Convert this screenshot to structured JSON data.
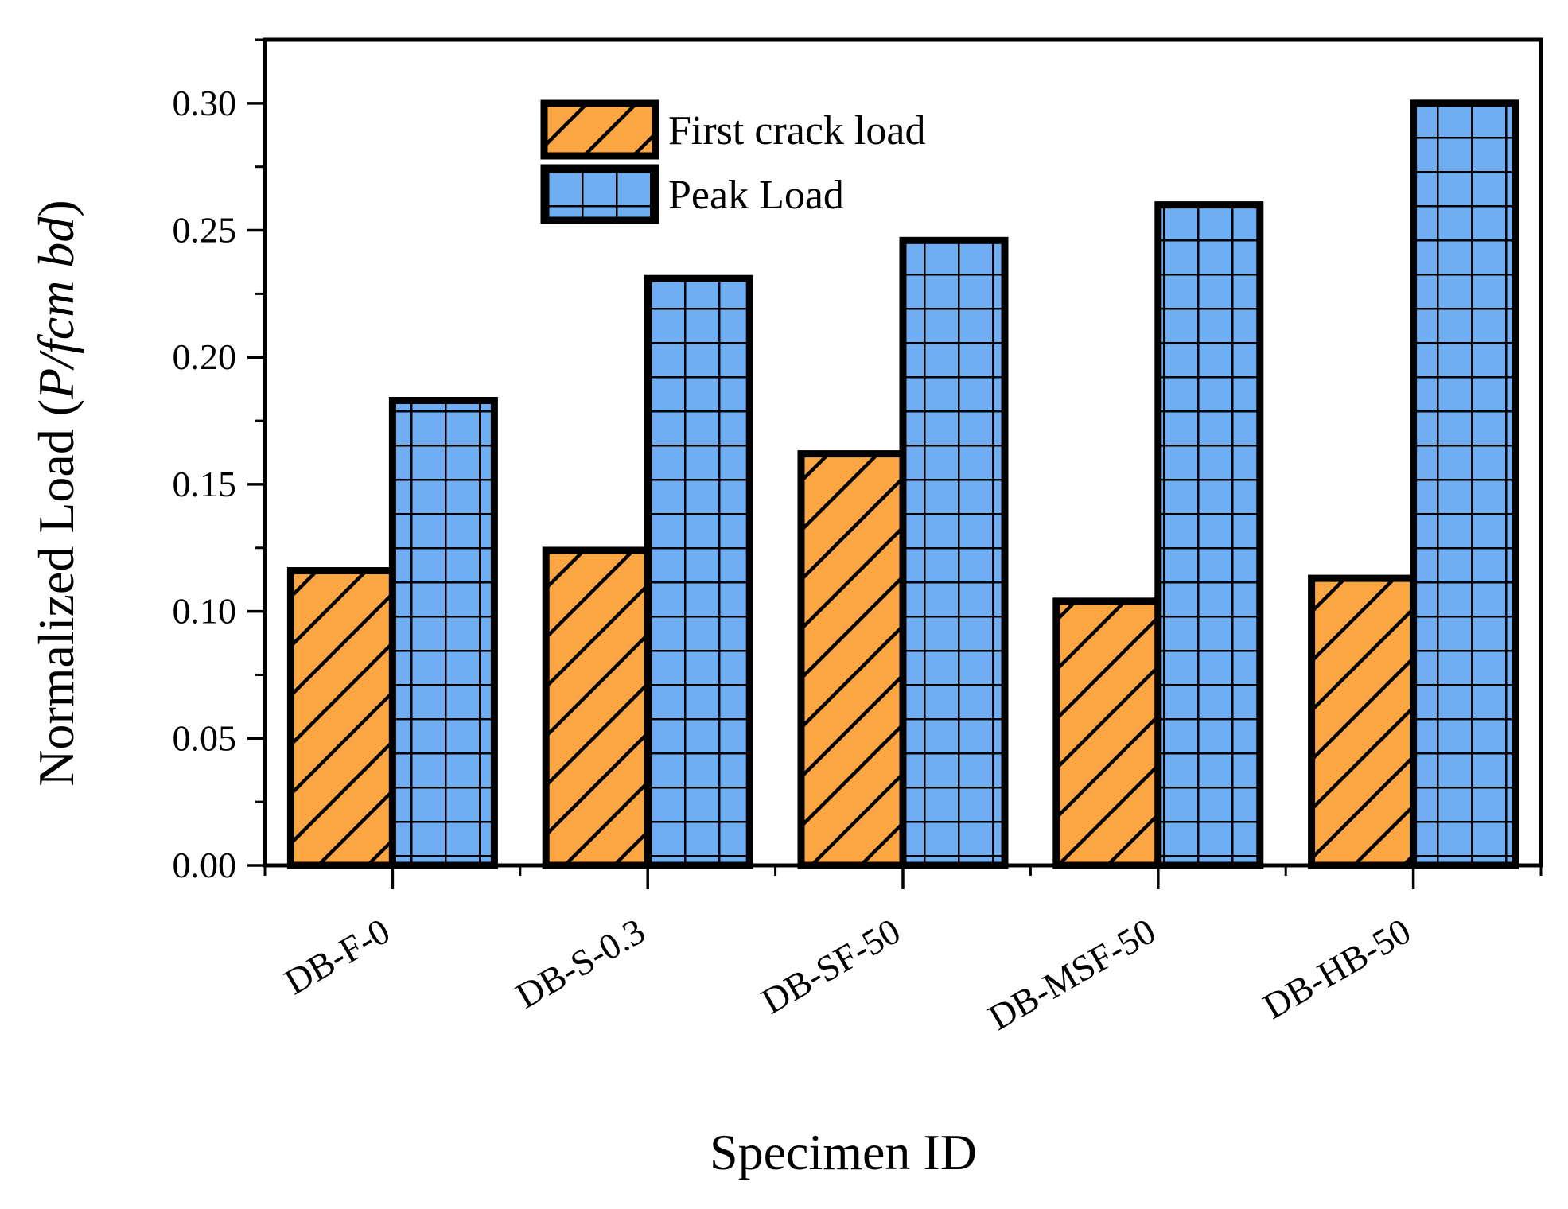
{
  "chart_data": {
    "type": "bar",
    "xlabel": "Specimen ID",
    "ylabel_parts": {
      "prefix": "Normalized Load (",
      "italic": "P/fcm bd",
      "suffix": ")"
    },
    "categories": [
      "DB-F-0",
      "DB-S-0.3",
      "DB-SF-50",
      "DB-MSF-50",
      "DB-HB-50"
    ],
    "series": [
      {
        "name": "First crack load",
        "values": [
          0.116,
          0.124,
          0.162,
          0.104,
          0.113
        ],
        "color": "#FBA543",
        "pattern": "diagonal-hatch"
      },
      {
        "name": "Peak Load",
        "values": [
          0.183,
          0.231,
          0.246,
          0.26,
          0.3
        ],
        "color": "#6FAEF2",
        "pattern": "grid"
      }
    ],
    "ylim": [
      0,
      0.325
    ],
    "yticks": [
      "0.00",
      "0.05",
      "0.10",
      "0.15",
      "0.20",
      "0.25",
      "0.30"
    ],
    "ytick_values": [
      0,
      0.05,
      0.1,
      0.15,
      0.2,
      0.25,
      0.3
    ],
    "grid": false,
    "legend_position": "top-center"
  }
}
